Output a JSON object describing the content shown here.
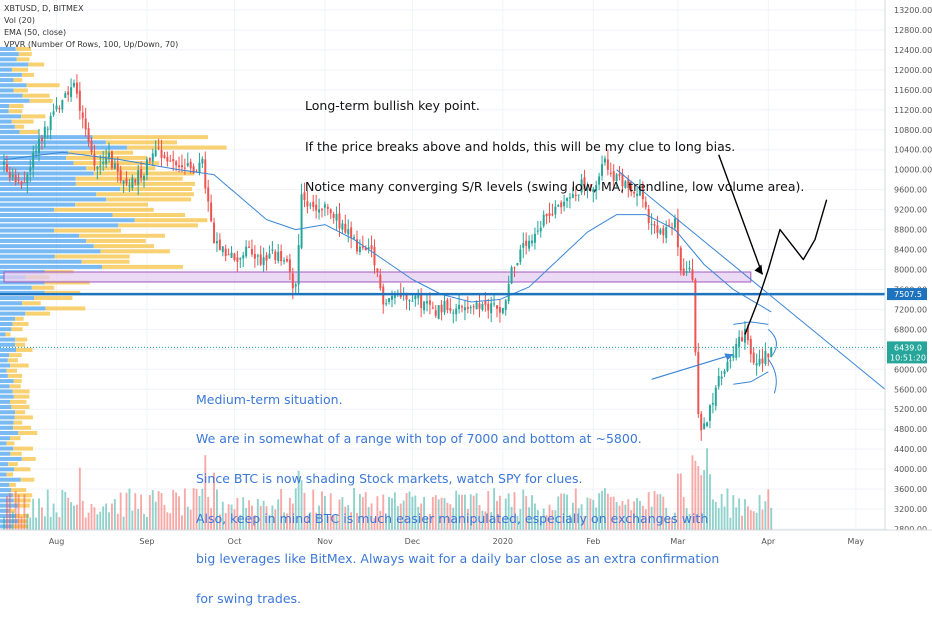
{
  "legend": {
    "symbol": "XBTUSD, D, BITMEX",
    "vol": "Vol (20)",
    "ema": "EMA (50, close)",
    "vpvr": "VPVR (Number Of Rows, 100, Up/Down, 70)"
  },
  "notes": {
    "long_term": [
      "Long-term bullish key point.",
      "If the price breaks above and holds, this will be my clue to long bias.",
      "Notice many converging S/R levels (swing low, MA, trendline, low volume area)."
    ],
    "medium_term": [
      "Medium-term situation.",
      "We are in somewhat of a range with top of 7000 and bottom at ~5800.",
      "Since BTC is now shading Stock markets, watch SPY for clues.",
      "Also, keep in mind BTC is much easier manipulated, especially on exchanges with",
      "big leverages like BitMex. Always wait for a daily bar close as an extra confirmation",
      "for swing trades."
    ]
  },
  "colors": {
    "up": "#26a69a",
    "down": "#ef5350",
    "ema": "#3a86d4",
    "support_line": "#1e73be",
    "zone_fill": "#e6ccef",
    "zone_border": "#a056c0",
    "vpvr_up": "#4da3f0",
    "vpvr_down": "#f6c244",
    "price_badge": "#26a69a",
    "level_badge": "#1e73be",
    "note_blue": "#3c78d8"
  },
  "chart_data": {
    "type": "candlestick",
    "symbol": "XBTUSD",
    "timeframe": "D",
    "exchange": "BITMEX",
    "y_axis": {
      "min": 2800,
      "max": 13200,
      "step": 400,
      "ticks": [
        "13200.00",
        "12800.00",
        "12400.00",
        "12000.00",
        "11600.00",
        "11200.00",
        "10800.00",
        "10400.00",
        "10000.00",
        "9600.00",
        "9200.00",
        "8800.00",
        "8400.00",
        "8000.00",
        "7600.00",
        "7200.00",
        "6800.00",
        "6400.00",
        "6000.00",
        "5600.00",
        "5200.00",
        "4800.00",
        "4400.00",
        "4000.00",
        "3600.00",
        "3200.00",
        "2800.00"
      ]
    },
    "x_axis": {
      "labels": [
        {
          "label": "Aug",
          "day": 18
        },
        {
          "label": "Sep",
          "day": 49
        },
        {
          "label": "Oct",
          "day": 79
        },
        {
          "label": "Nov",
          "day": 110
        },
        {
          "label": "Dec",
          "day": 140
        },
        {
          "label": "2020",
          "day": 171
        },
        {
          "label": "Feb",
          "day": 202
        },
        {
          "label": "Mar",
          "day": 231
        },
        {
          "label": "Apr",
          "day": 262
        },
        {
          "label": "May",
          "day": 292
        }
      ],
      "last_day": 263,
      "max_day": 302
    },
    "price_keyframes": [
      [
        0,
        10100
      ],
      [
        6,
        9600
      ],
      [
        12,
        10600
      ],
      [
        18,
        11200
      ],
      [
        21,
        11500
      ],
      [
        24,
        11700
      ],
      [
        27,
        11100
      ],
      [
        30,
        10300
      ],
      [
        33,
        10000
      ],
      [
        36,
        10300
      ],
      [
        40,
        9700
      ],
      [
        44,
        9800
      ],
      [
        48,
        10000
      ],
      [
        52,
        10500
      ],
      [
        56,
        10200
      ],
      [
        60,
        10100
      ],
      [
        64,
        10000
      ],
      [
        68,
        10100
      ],
      [
        72,
        8500
      ],
      [
        76,
        8300
      ],
      [
        80,
        8200
      ],
      [
        84,
        8400
      ],
      [
        88,
        8200
      ],
      [
        92,
        8300
      ],
      [
        96,
        8200
      ],
      [
        100,
        7600
      ],
      [
        102,
        9400
      ],
      [
        106,
        9200
      ],
      [
        110,
        9200
      ],
      [
        114,
        9000
      ],
      [
        118,
        8700
      ],
      [
        122,
        8400
      ],
      [
        126,
        8300
      ],
      [
        130,
        7400
      ],
      [
        134,
        7500
      ],
      [
        140,
        7500
      ],
      [
        144,
        7300
      ],
      [
        148,
        7200
      ],
      [
        152,
        7300
      ],
      [
        156,
        7200
      ],
      [
        160,
        7300
      ],
      [
        164,
        7200
      ],
      [
        168,
        7300
      ],
      [
        171,
        7200
      ],
      [
        174,
        8000
      ],
      [
        178,
        8400
      ],
      [
        182,
        8600
      ],
      [
        186,
        9100
      ],
      [
        190,
        9300
      ],
      [
        194,
        9400
      ],
      [
        198,
        9700
      ],
      [
        202,
        9500
      ],
      [
        206,
        10200
      ],
      [
        210,
        9800
      ],
      [
        214,
        9700
      ],
      [
        218,
        9600
      ],
      [
        222,
        8800
      ],
      [
        226,
        8700
      ],
      [
        230,
        8900
      ],
      [
        232,
        8000
      ],
      [
        236,
        7900
      ],
      [
        238,
        5000
      ],
      [
        240,
        4800
      ],
      [
        242,
        5300
      ],
      [
        246,
        5900
      ],
      [
        250,
        6400
      ],
      [
        254,
        6700
      ],
      [
        257,
        6100
      ],
      [
        260,
        6200
      ],
      [
        263,
        6439
      ]
    ],
    "ema_50_keyframes": [
      [
        0,
        10200
      ],
      [
        20,
        10350
      ],
      [
        40,
        10200
      ],
      [
        60,
        10000
      ],
      [
        72,
        9900
      ],
      [
        80,
        9500
      ],
      [
        90,
        9000
      ],
      [
        100,
        8800
      ],
      [
        110,
        8900
      ],
      [
        120,
        8600
      ],
      [
        130,
        8200
      ],
      [
        140,
        7800
      ],
      [
        150,
        7500
      ],
      [
        160,
        7350
      ],
      [
        170,
        7400
      ],
      [
        180,
        7650
      ],
      [
        190,
        8200
      ],
      [
        200,
        8750
      ],
      [
        210,
        9100
      ],
      [
        220,
        9100
      ],
      [
        230,
        8800
      ],
      [
        240,
        8100
      ],
      [
        250,
        7600
      ],
      [
        263,
        7150
      ]
    ],
    "current_price": {
      "value": 6439.0,
      "label": "6439.0",
      "countdown": "10:51:20"
    },
    "levels": [
      {
        "name": "support-resistance",
        "value": 7507.5,
        "label": "7507.5"
      }
    ],
    "zones": [
      {
        "name": "key-zone",
        "from": 7750,
        "to": 7950,
        "start_day": 0,
        "end_day": 256
      }
    ],
    "vpvr": {
      "rows": 100,
      "high_volume_range": [
        8000,
        10600
      ],
      "point_of_control": 10000
    },
    "annotations": {
      "black_arrow": {
        "from_day": 245,
        "from_price": 10300,
        "to_day": 260,
        "to_price": 7900
      },
      "blue_arrow": {
        "from_day": 222,
        "from_price": 5800,
        "to_day": 250,
        "to_price": 6300
      },
      "projection": {
        "path": [
          [
            254,
            6700
          ],
          [
            258,
            7300
          ],
          [
            262,
            8000
          ],
          [
            266,
            8800
          ],
          [
            270,
            8500
          ],
          [
            274,
            8200
          ],
          [
            278,
            8600
          ],
          [
            282,
            9400
          ]
        ]
      },
      "trendline": {
        "from_day": 210,
        "from_price": 10000,
        "to_day": 302,
        "to_price": 5600
      }
    }
  }
}
